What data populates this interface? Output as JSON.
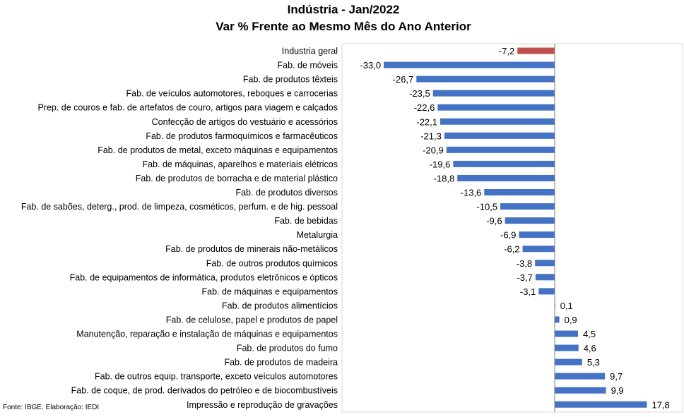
{
  "chart_data": {
    "type": "bar",
    "orientation": "horizontal",
    "title": "Indústria - Jan/2022",
    "subtitle": "Var % Frente ao Mesmo Mês do Ano Anterior",
    "source": "Fonte: IBGE. Elaboração: IEDI",
    "xlabel": "",
    "ylabel": "",
    "grid": false,
    "legend": "none",
    "colors": {
      "default": "#4472c4",
      "highlight": "#c0504d"
    },
    "categories": [
      "Industria geral",
      "Fab. de móveis",
      "Fab. de produtos têxteis",
      "Fab. de veículos automotores, reboques e carrocerias",
      "Prep. de couros e fab. de artefatos de couro, artigos para viagem e calçados",
      "Confecção de artigos do vestuário e acessórios",
      "Fab. de produtos farmoquímicos e farmacêuticos",
      "Fab. de produtos de metal, exceto máquinas e equipamentos",
      "Fab. de máquinas, aparelhos e materiais elétricos",
      "Fab. de produtos de borracha e de material plástico",
      "Fab. de produtos diversos",
      "Fab. de sabões, deterg., prod. de limpeza, cosméticos, perfum. e de hig. pessoal",
      "Fab. de bebidas",
      "Metalurgia",
      "Fab. de produtos de minerais não-metálicos",
      "Fab. de outros produtos químicos",
      "Fab. de equipamentos de informática, produtos eletrônicos e ópticos",
      "Fab. de máquinas e equipamentos",
      "Fab. de produtos alimentícios",
      "Fab. de celulose, papel e produtos de papel",
      "Manutenção, reparação e instalação de máquinas e equipamentos",
      "Fab. de produtos do fumo",
      "Fab. de produtos de madeira",
      "Fab. de outros equip. transporte, exceto veículos automotores",
      "Fab. de coque, de prod. derivados do petróleo e de biocombustíveis",
      "Impressão e reprodução de gravações"
    ],
    "values": [
      -7.2,
      -33.0,
      -26.7,
      -23.5,
      -22.6,
      -22.1,
      -21.3,
      -20.9,
      -19.6,
      -18.8,
      -13.6,
      -10.5,
      -9.6,
      -6.9,
      -6.2,
      -3.8,
      -3.7,
      -3.1,
      0.1,
      0.9,
      4.5,
      4.6,
      5.3,
      9.7,
      9.9,
      17.8
    ],
    "data_labels": [
      "-7,2",
      "-33,0",
      "-26,7",
      "-23,5",
      "-22,6",
      "-22,1",
      "-21,3",
      "-20,9",
      "-19,6",
      "-18,8",
      "-13,6",
      "-10,5",
      "-9,6",
      "-6,9",
      "-6,2",
      "-3,8",
      "-3,7",
      "-3,1",
      "0,1",
      "0,9",
      "4,5",
      "4,6",
      "5,3",
      "9,7",
      "9,9",
      "17,8"
    ],
    "highlight_index": 0,
    "xlim": [
      -33.0,
      17.8
    ]
  }
}
